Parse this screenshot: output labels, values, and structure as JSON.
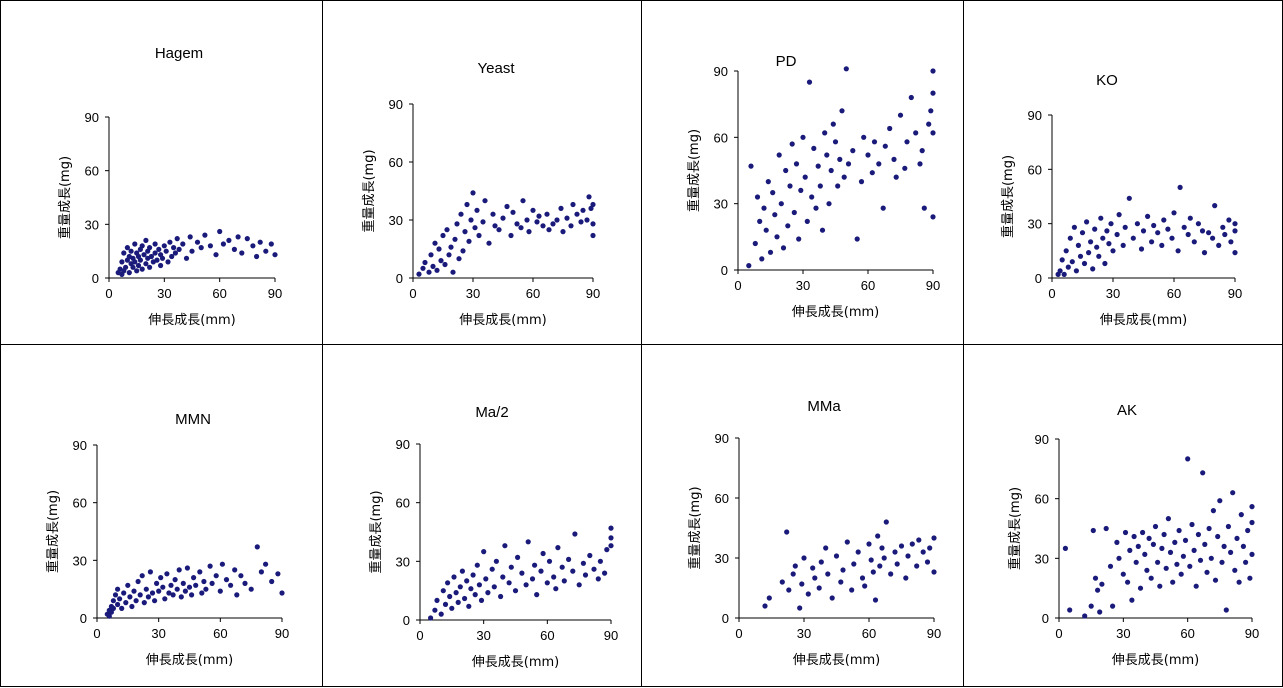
{
  "colors": {
    "point": "#1a1a7a",
    "axis": "#000000"
  },
  "axis_labels": {
    "x": "伸長成長(mm)",
    "y": "重量成長(mg)"
  },
  "chart_data": [
    {
      "type": "scatter",
      "title": "Hagem",
      "xlabel": "伸長成長(mm)",
      "ylabel": "重量成長(mg)",
      "xlim": [
        0,
        90
      ],
      "ylim": [
        0,
        90
      ],
      "xticks": [
        "0",
        "30",
        "60",
        "90"
      ],
      "yticks": [
        "0",
        "30",
        "60",
        "90"
      ],
      "x": [
        5,
        6,
        7,
        7,
        8,
        8,
        9,
        10,
        10,
        11,
        11,
        12,
        12,
        13,
        13,
        14,
        14,
        15,
        15,
        16,
        16,
        17,
        17,
        18,
        18,
        19,
        20,
        20,
        21,
        21,
        22,
        22,
        23,
        24,
        25,
        25,
        26,
        27,
        28,
        28,
        29,
        30,
        31,
        32,
        33,
        34,
        35,
        36,
        37,
        38,
        40,
        42,
        44,
        45,
        48,
        50,
        52,
        55,
        58,
        60,
        62,
        65,
        68,
        70,
        72,
        75,
        78,
        80,
        82,
        85,
        88,
        90
      ],
      "y": [
        3,
        5,
        2,
        9,
        4,
        14,
        6,
        10,
        17,
        3,
        12,
        8,
        15,
        6,
        11,
        19,
        9,
        14,
        4,
        12,
        7,
        16,
        10,
        18,
        5,
        13,
        8,
        21,
        11,
        15,
        6,
        17,
        12,
        9,
        14,
        19,
        10,
        16,
        7,
        13,
        11,
        18,
        15,
        9,
        20,
        12,
        17,
        14,
        22,
        16,
        19,
        11,
        23,
        15,
        20,
        17,
        24,
        18,
        13,
        26,
        19,
        21,
        16,
        23,
        14,
        22,
        18,
        12,
        20,
        15,
        19,
        13
      ]
    },
    {
      "type": "scatter",
      "title": "Yeast",
      "xlabel": "伸長成長(mm)",
      "ylabel": "重量成長(mg)",
      "xlim": [
        0,
        90
      ],
      "ylim": [
        0,
        90
      ],
      "xticks": [
        "0",
        "30",
        "60",
        "90"
      ],
      "yticks": [
        "0",
        "30",
        "60",
        "90"
      ],
      "x": [
        3,
        5,
        6,
        8,
        9,
        10,
        11,
        12,
        13,
        14,
        15,
        16,
        17,
        18,
        19,
        20,
        21,
        22,
        23,
        24,
        25,
        26,
        27,
        28,
        29,
        30,
        31,
        32,
        33,
        35,
        36,
        38,
        40,
        41,
        43,
        45,
        47,
        49,
        50,
        52,
        54,
        55,
        57,
        58,
        60,
        62,
        63,
        65,
        67,
        68,
        70,
        72,
        74,
        75,
        77,
        79,
        80,
        82,
        84,
        85,
        87,
        88,
        89,
        90,
        90,
        90
      ],
      "y": [
        2,
        5,
        8,
        3,
        12,
        6,
        18,
        4,
        15,
        9,
        22,
        7,
        25,
        12,
        16,
        3,
        20,
        28,
        10,
        33,
        14,
        24,
        38,
        19,
        30,
        44,
        26,
        35,
        22,
        29,
        40,
        18,
        33,
        27,
        25,
        31,
        37,
        22,
        34,
        28,
        26,
        40,
        30,
        24,
        35,
        29,
        32,
        27,
        33,
        25,
        28,
        30,
        36,
        24,
        31,
        27,
        38,
        33,
        29,
        35,
        30,
        42,
        36,
        28,
        38,
        22
      ]
    },
    {
      "type": "scatter",
      "title": "PD",
      "xlabel": "伸長成長(mm)",
      "ylabel": "重量成長(mg)",
      "xlim": [
        0,
        90
      ],
      "ylim": [
        0,
        90
      ],
      "xticks": [
        "0",
        "30",
        "60",
        "90"
      ],
      "yticks": [
        "0",
        "30",
        "60",
        "90"
      ],
      "x": [
        5,
        6,
        8,
        9,
        10,
        11,
        12,
        13,
        14,
        15,
        16,
        17,
        18,
        19,
        20,
        21,
        22,
        23,
        24,
        25,
        26,
        27,
        28,
        29,
        30,
        31,
        32,
        33,
        34,
        35,
        36,
        37,
        38,
        39,
        40,
        41,
        42,
        43,
        44,
        45,
        46,
        47,
        48,
        49,
        50,
        51,
        53,
        55,
        57,
        58,
        60,
        62,
        63,
        65,
        67,
        68,
        70,
        72,
        73,
        75,
        77,
        78,
        80,
        82,
        84,
        85,
        86,
        88,
        89,
        90,
        90,
        90,
        90
      ],
      "y": [
        2,
        47,
        12,
        33,
        22,
        5,
        28,
        18,
        40,
        8,
        35,
        25,
        15,
        52,
        30,
        10,
        45,
        20,
        38,
        57,
        26,
        48,
        14,
        36,
        60,
        42,
        22,
        85,
        33,
        55,
        28,
        47,
        38,
        18,
        62,
        52,
        30,
        45,
        66,
        58,
        38,
        50,
        72,
        42,
        91,
        48,
        54,
        14,
        40,
        60,
        52,
        44,
        58,
        48,
        28,
        56,
        64,
        50,
        42,
        70,
        46,
        58,
        78,
        62,
        48,
        54,
        28,
        66,
        72,
        80,
        90,
        62,
        24
      ]
    },
    {
      "type": "scatter",
      "title": "KO",
      "xlabel": "伸長成長(mm)",
      "ylabel": "重量成長(mg)",
      "xlim": [
        0,
        90
      ],
      "ylim": [
        0,
        90
      ],
      "xticks": [
        "0",
        "30",
        "60",
        "90"
      ],
      "yticks": [
        "0",
        "30",
        "60",
        "90"
      ],
      "x": [
        3,
        4,
        5,
        6,
        7,
        8,
        9,
        10,
        11,
        12,
        13,
        14,
        15,
        16,
        17,
        18,
        19,
        20,
        21,
        22,
        23,
        24,
        25,
        26,
        27,
        28,
        29,
        30,
        32,
        33,
        35,
        36,
        38,
        40,
        42,
        44,
        45,
        47,
        49,
        50,
        52,
        54,
        55,
        57,
        59,
        60,
        62,
        63,
        65,
        67,
        68,
        70,
        72,
        74,
        75,
        77,
        79,
        80,
        82,
        84,
        85,
        87,
        88,
        90,
        90,
        90
      ],
      "y": [
        2,
        4,
        10,
        2,
        15,
        6,
        22,
        9,
        28,
        4,
        18,
        12,
        25,
        8,
        31,
        14,
        20,
        5,
        27,
        17,
        12,
        33,
        22,
        8,
        26,
        19,
        30,
        15,
        24,
        35,
        18,
        28,
        44,
        22,
        30,
        16,
        26,
        34,
        20,
        29,
        25,
        18,
        32,
        27,
        22,
        36,
        15,
        50,
        28,
        24,
        33,
        20,
        30,
        26,
        14,
        25,
        22,
        40,
        18,
        28,
        24,
        32,
        20,
        30,
        14,
        26
      ]
    },
    {
      "type": "scatter",
      "title": "MMN",
      "xlabel": "伸長成長(mm)",
      "ylabel": "重量成長(mg)",
      "xlim": [
        0,
        90
      ],
      "ylim": [
        0,
        90
      ],
      "xticks": [
        "0",
        "30",
        "60",
        "90"
      ],
      "yticks": [
        "0",
        "30",
        "60",
        "90"
      ],
      "x": [
        5,
        6,
        6,
        7,
        7,
        8,
        8,
        9,
        10,
        10,
        11,
        12,
        13,
        14,
        15,
        16,
        17,
        18,
        19,
        20,
        21,
        22,
        23,
        24,
        25,
        26,
        27,
        28,
        29,
        30,
        31,
        32,
        33,
        34,
        35,
        36,
        37,
        38,
        39,
        40,
        41,
        42,
        43,
        44,
        45,
        46,
        47,
        48,
        50,
        51,
        52,
        53,
        55,
        56,
        58,
        60,
        61,
        63,
        65,
        67,
        68,
        70,
        72,
        75,
        78,
        80,
        82,
        85,
        88,
        90
      ],
      "y": [
        2,
        4,
        1,
        6,
        3,
        9,
        5,
        12,
        7,
        15,
        10,
        5,
        13,
        8,
        17,
        11,
        6,
        14,
        9,
        19,
        12,
        22,
        8,
        15,
        11,
        24,
        13,
        9,
        18,
        14,
        21,
        16,
        10,
        23,
        13,
        17,
        12,
        20,
        15,
        25,
        11,
        18,
        14,
        26,
        16,
        12,
        21,
        17,
        24,
        13,
        19,
        15,
        27,
        18,
        22,
        14,
        28,
        20,
        17,
        25,
        12,
        22,
        18,
        15,
        37,
        24,
        28,
        19,
        23,
        13
      ]
    },
    {
      "type": "scatter",
      "title": "Ma/2",
      "xlabel": "伸長成長(mm)",
      "ylabel": "重量成長(mg)",
      "xlim": [
        0,
        90
      ],
      "ylim": [
        0,
        90
      ],
      "xticks": [
        "0",
        "30",
        "60",
        "90"
      ],
      "yticks": [
        "0",
        "30",
        "60",
        "90"
      ],
      "x": [
        5,
        7,
        8,
        10,
        11,
        12,
        13,
        14,
        15,
        16,
        17,
        18,
        19,
        20,
        21,
        22,
        23,
        24,
        25,
        26,
        27,
        28,
        29,
        30,
        31,
        32,
        34,
        35,
        36,
        38,
        39,
        40,
        42,
        43,
        45,
        46,
        48,
        50,
        51,
        53,
        54,
        55,
        57,
        58,
        60,
        61,
        63,
        64,
        65,
        67,
        68,
        70,
        72,
        73,
        75,
        77,
        78,
        80,
        82,
        84,
        85,
        87,
        88,
        90,
        90,
        90
      ],
      "y": [
        1,
        5,
        10,
        3,
        15,
        8,
        19,
        12,
        6,
        22,
        14,
        9,
        17,
        25,
        11,
        20,
        7,
        16,
        23,
        13,
        28,
        18,
        10,
        35,
        21,
        14,
        26,
        17,
        30,
        12,
        22,
        38,
        19,
        27,
        15,
        32,
        24,
        18,
        40,
        21,
        28,
        13,
        25,
        34,
        19,
        30,
        22,
        16,
        37,
        27,
        20,
        31,
        25,
        44,
        18,
        29,
        23,
        33,
        26,
        21,
        30,
        24,
        36,
        42,
        38,
        47
      ]
    },
    {
      "type": "scatter",
      "title": "MMa",
      "xlabel": "伸長成長(mm)",
      "ylabel": "重量成長(mg)",
      "xlim": [
        0,
        90
      ],
      "ylim": [
        0,
        90
      ],
      "xticks": [
        "0",
        "30",
        "60",
        "90"
      ],
      "yticks": [
        "0",
        "30",
        "60",
        "90"
      ],
      "x": [
        12,
        14,
        20,
        22,
        23,
        25,
        26,
        28,
        29,
        30,
        32,
        34,
        35,
        37,
        38,
        40,
        41,
        43,
        45,
        47,
        48,
        50,
        52,
        53,
        55,
        57,
        58,
        60,
        61,
        62,
        63,
        64,
        65,
        66,
        67,
        68,
        70,
        72,
        73,
        75,
        77,
        78,
        80,
        82,
        83,
        85,
        87,
        88,
        90,
        90
      ],
      "y": [
        6,
        10,
        18,
        43,
        14,
        22,
        26,
        5,
        17,
        30,
        12,
        25,
        20,
        15,
        28,
        35,
        22,
        10,
        31,
        18,
        24,
        38,
        14,
        27,
        33,
        20,
        16,
        37,
        29,
        23,
        9,
        41,
        26,
        35,
        30,
        48,
        22,
        33,
        27,
        36,
        20,
        31,
        37,
        26,
        39,
        33,
        28,
        35,
        40,
        23
      ]
    },
    {
      "type": "scatter",
      "title": "AK",
      "xlabel": "伸長成長(mm)",
      "ylabel": "重量成長(mg)",
      "xlim": [
        0,
        90
      ],
      "ylim": [
        0,
        90
      ],
      "xticks": [
        "0",
        "30",
        "60",
        "90"
      ],
      "yticks": [
        "0",
        "30",
        "60",
        "90"
      ],
      "x": [
        3,
        5,
        12,
        15,
        16,
        17,
        18,
        19,
        20,
        22,
        24,
        25,
        27,
        28,
        30,
        31,
        32,
        33,
        34,
        35,
        36,
        37,
        38,
        39,
        40,
        41,
        42,
        43,
        44,
        45,
        46,
        47,
        48,
        49,
        50,
        51,
        52,
        53,
        54,
        55,
        56,
        57,
        58,
        59,
        60,
        61,
        62,
        63,
        64,
        65,
        66,
        67,
        68,
        69,
        70,
        71,
        72,
        73,
        74,
        75,
        76,
        77,
        78,
        79,
        80,
        81,
        82,
        83,
        84,
        85,
        86,
        87,
        88,
        89,
        90,
        90,
        90
      ],
      "y": [
        35,
        4,
        1,
        6,
        44,
        20,
        14,
        3,
        17,
        45,
        26,
        6,
        38,
        30,
        22,
        43,
        18,
        34,
        9,
        41,
        28,
        36,
        15,
        43,
        32,
        24,
        40,
        20,
        37,
        46,
        28,
        16,
        35,
        42,
        25,
        50,
        33,
        18,
        38,
        27,
        44,
        22,
        31,
        39,
        80,
        26,
        47,
        34,
        16,
        42,
        29,
        73,
        37,
        23,
        45,
        30,
        54,
        19,
        41,
        59,
        28,
        36,
        4,
        46,
        33,
        63,
        24,
        40,
        18,
        52,
        36,
        28,
        44,
        20,
        56,
        32,
        48
      ]
    }
  ]
}
